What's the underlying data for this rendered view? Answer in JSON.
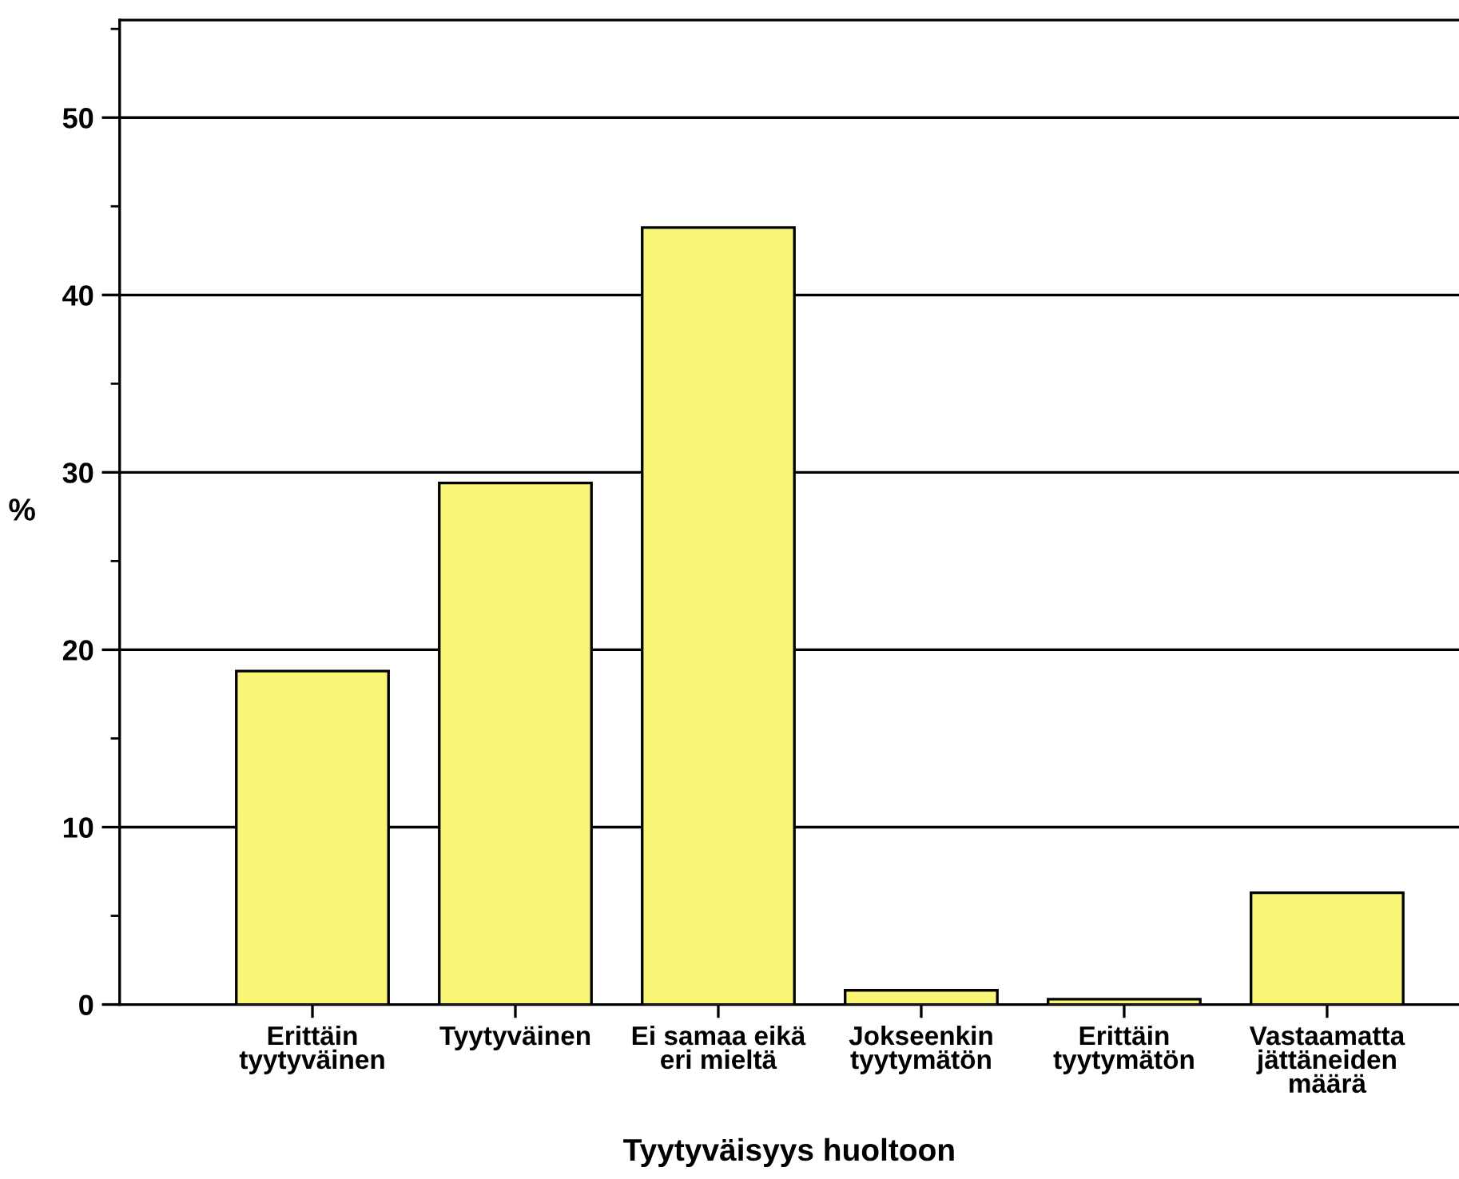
{
  "chart_data": {
    "type": "bar",
    "xlabel": "Tyytyväisyys huoltoon",
    "ylabel": "%",
    "categories": [
      "Erittäin\ntyytyväinen",
      "Tyytyväinen",
      "Ei samaa eikä\neri mieltä",
      "Jokseenkin\ntyytymätön",
      "Erittäin\ntyytymätön",
      "Vastaamatta\njättäneiden\nmäärä"
    ],
    "values": [
      18.8,
      29.4,
      43.8,
      0.8,
      0.3,
      6.3
    ],
    "color": "#f9f677",
    "ylim": [
      0,
      55.5
    ],
    "yticks": [
      0,
      {
        "value": 5,
        "label": null
      },
      10,
      {
        "value": 15,
        "label": null
      },
      20,
      {
        "value": 25,
        "label": null
      },
      30,
      {
        "value": 35,
        "label": null
      },
      40,
      {
        "value": 45,
        "label": null
      },
      50,
      {
        "value": 55,
        "label": null
      }
    ],
    "grid": "y"
  }
}
